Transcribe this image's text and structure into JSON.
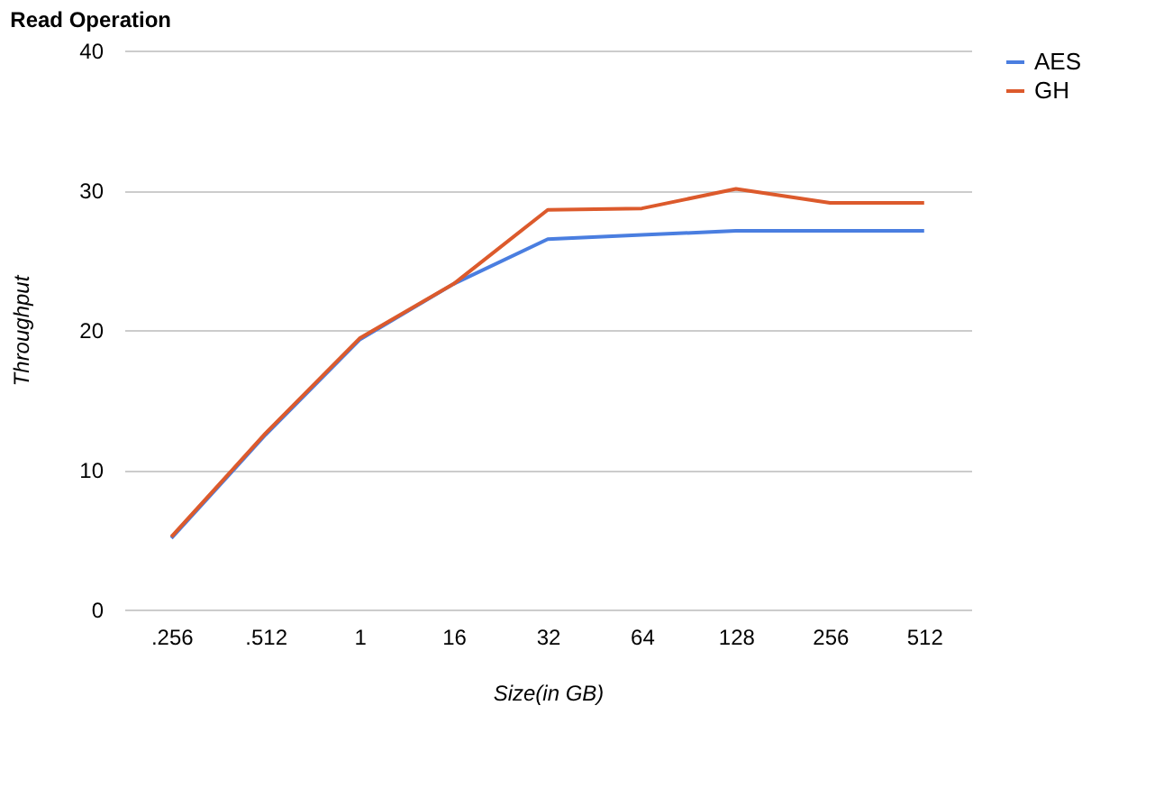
{
  "chart_data": {
    "type": "line",
    "title": "Read Operation",
    "xlabel": "Size(in GB)",
    "ylabel": "Throughput",
    "categories": [
      ".256",
      ".512",
      "1",
      "16",
      "32",
      "64",
      "128",
      "256",
      "512"
    ],
    "series": [
      {
        "name": "AES",
        "color": "#4a7ee0",
        "values": [
          5.1,
          12.5,
          19.3,
          23.3,
          26.5,
          26.8,
          27.1,
          27.1,
          27.1
        ]
      },
      {
        "name": "GH",
        "color": "#dc5a2c",
        "values": [
          5.2,
          12.6,
          19.4,
          23.3,
          28.6,
          28.7,
          30.1,
          29.1,
          29.1
        ]
      }
    ],
    "ylim": [
      0,
      40
    ],
    "yticks": [
      0,
      10,
      20,
      30,
      40
    ],
    "grid": "y",
    "legend": "top right",
    "marker": "none",
    "line_style": "solid"
  }
}
